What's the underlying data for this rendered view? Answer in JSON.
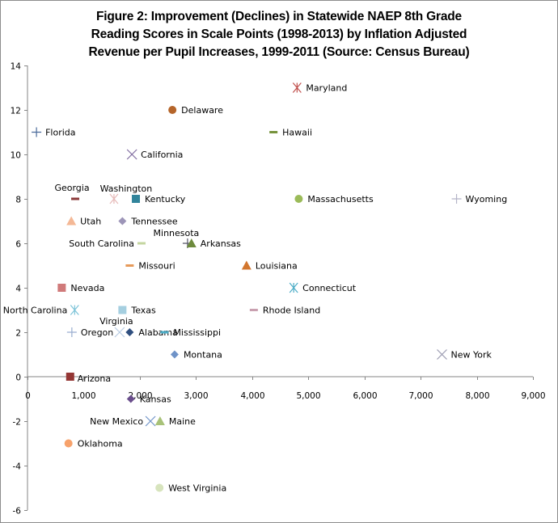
{
  "chart_data": {
    "type": "scatter",
    "title_lines": [
      "Figure 2: Improvement (Declines) in Statewide NAEP 8th Grade",
      "Reading Scores in Scale Points (1998-2013) by Inflation Adjusted",
      "Revenue per Pupil Increases, 1999-2011 (Source: Census Bureau)"
    ],
    "xlabel": "",
    "ylabel": "",
    "xlim": [
      0,
      9000
    ],
    "ylim": [
      -6,
      14
    ],
    "x_ticks": [
      0,
      1000,
      2000,
      3000,
      4000,
      5000,
      6000,
      7000,
      8000,
      9000
    ],
    "x_tick_labels": [
      "0",
      "1,000",
      "2,000",
      "3,000",
      "4,000",
      "5,000",
      "6,000",
      "7,000",
      "8,000",
      "9,000"
    ],
    "y_ticks": [
      14,
      12,
      10,
      8,
      6,
      4,
      2,
      0,
      -2,
      -4,
      -6
    ],
    "y_tick_labels": [
      "14",
      "12",
      "10",
      "8",
      "6",
      "4",
      "2",
      "0",
      "-2",
      "-4",
      "-6"
    ],
    "grid": false,
    "legend": "none",
    "points": [
      {
        "name": "Maryland",
        "x": 4800,
        "y": 13,
        "marker": "asterisk",
        "color": "#c0504d",
        "label_pos": "right"
      },
      {
        "name": "Delaware",
        "x": 2580,
        "y": 12,
        "marker": "circle",
        "color": "#b5652a",
        "label_pos": "right"
      },
      {
        "name": "Florida",
        "x": 160,
        "y": 11,
        "marker": "plus",
        "color": "#4a6a9a",
        "label_pos": "right"
      },
      {
        "name": "Hawaii",
        "x": 4380,
        "y": 11,
        "marker": "dash",
        "color": "#77933c",
        "label_pos": "right"
      },
      {
        "name": "California",
        "x": 1860,
        "y": 10,
        "marker": "x",
        "color": "#7f6a9f",
        "label_pos": "right"
      },
      {
        "name": "Georgia",
        "x": 850,
        "y": 8,
        "marker": "dash",
        "color": "#8b3a3a",
        "label_pos": "above"
      },
      {
        "name": "Washington",
        "x": 1540,
        "y": 8,
        "marker": "asterisk",
        "color": "#e6b9b8",
        "label_pos": "above-right"
      },
      {
        "name": "Kentucky",
        "x": 1930,
        "y": 8,
        "marker": "square",
        "color": "#31849b",
        "label_pos": "right"
      },
      {
        "name": "Massachusetts",
        "x": 4830,
        "y": 8,
        "marker": "circle",
        "color": "#9bbb59",
        "label_pos": "right"
      },
      {
        "name": "Wyoming",
        "x": 7640,
        "y": 8,
        "marker": "plus",
        "color": "#b4b4c8",
        "label_pos": "right"
      },
      {
        "name": "Utah",
        "x": 780,
        "y": 7,
        "marker": "triangle",
        "color": "#f4b896",
        "label_pos": "right"
      },
      {
        "name": "Tennessee",
        "x": 1690,
        "y": 7,
        "marker": "diamond",
        "color": "#9d95b8",
        "label_pos": "right"
      },
      {
        "name": "South Carolina",
        "x": 2030,
        "y": 6,
        "marker": "dash",
        "color": "#c4d6a0",
        "label_pos": "left"
      },
      {
        "name": "Minnesota",
        "x": 2850,
        "y": 6,
        "marker": "plus",
        "color": "#555566",
        "label_pos": "above-left"
      },
      {
        "name": "Arkansas",
        "x": 2920,
        "y": 6,
        "marker": "triangle",
        "color": "#6e8b3d",
        "label_pos": "right"
      },
      {
        "name": "Missouri",
        "x": 1820,
        "y": 5,
        "marker": "dash",
        "color": "#e69a5a",
        "label_pos": "right"
      },
      {
        "name": "Louisiana",
        "x": 3900,
        "y": 5,
        "marker": "triangle",
        "color": "#d2762e",
        "label_pos": "right"
      },
      {
        "name": "Nevada",
        "x": 610,
        "y": 4,
        "marker": "square",
        "color": "#d07a7a",
        "label_pos": "right"
      },
      {
        "name": "Connecticut",
        "x": 4740,
        "y": 4,
        "marker": "asterisk",
        "color": "#4bacc6",
        "label_pos": "right"
      },
      {
        "name": "North Carolina",
        "x": 840,
        "y": 3,
        "marker": "asterisk",
        "color": "#7cc3d8",
        "label_pos": "left"
      },
      {
        "name": "Texas",
        "x": 1690,
        "y": 3,
        "marker": "square",
        "color": "#a5cfe0",
        "label_pos": "right"
      },
      {
        "name": "Rhode Island",
        "x": 4030,
        "y": 3,
        "marker": "dash",
        "color": "#c9a0b0",
        "label_pos": "right"
      },
      {
        "name": "Oregon",
        "x": 790,
        "y": 2,
        "marker": "plus",
        "color": "#9aaed0",
        "label_pos": "right"
      },
      {
        "name": "Virginia",
        "x": 1640,
        "y": 2,
        "marker": "x",
        "color": "#b8cce4",
        "label_pos": "above"
      },
      {
        "name": "Alabama",
        "x": 1820,
        "y": 2,
        "marker": "diamond",
        "color": "#2f4f7f",
        "label_pos": "right"
      },
      {
        "name": "Mississippi",
        "x": 2440,
        "y": 2,
        "marker": "dash",
        "color": "#4bacc6",
        "label_pos": "right"
      },
      {
        "name": "Montana",
        "x": 2620,
        "y": 1,
        "marker": "diamond",
        "color": "#6f93c8",
        "label_pos": "right"
      },
      {
        "name": "New York",
        "x": 7380,
        "y": 1,
        "marker": "x",
        "color": "#9a9ab0",
        "label_pos": "right"
      },
      {
        "name": "Arizona",
        "x": 760,
        "y": 0,
        "marker": "square",
        "color": "#943634",
        "label_pos": "right-below"
      },
      {
        "name": "Kansas",
        "x": 1840,
        "y": -1,
        "marker": "diamond",
        "color": "#6a4e8c",
        "label_pos": "right"
      },
      {
        "name": "New Mexico",
        "x": 2190,
        "y": -2,
        "marker": "x",
        "color": "#6f93c8",
        "label_pos": "left"
      },
      {
        "name": "Maine",
        "x": 2360,
        "y": -2,
        "marker": "triangle",
        "color": "#a8c279",
        "label_pos": "right"
      },
      {
        "name": "Oklahoma",
        "x": 730,
        "y": -3,
        "marker": "circle",
        "color": "#f7a26b",
        "label_pos": "right"
      },
      {
        "name": "West Virginia",
        "x": 2350,
        "y": -5,
        "marker": "circle",
        "color": "#d7e4bd",
        "label_pos": "right"
      }
    ]
  }
}
